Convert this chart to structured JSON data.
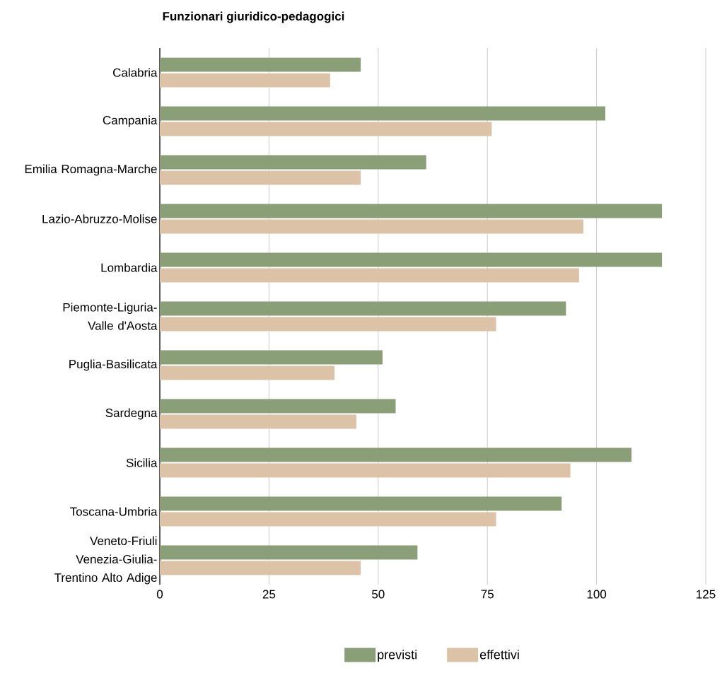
{
  "chart_data": {
    "type": "bar",
    "orientation": "horizontal",
    "title": "Funzionari giuridico-pedagogici",
    "categories": [
      "Calabria",
      "Campania",
      "Emilia Romagna-Marche",
      "Lazio-Abruzzo-Molise",
      "Lombardia",
      "Piemonte-Liguria-Valle d'Aosta",
      "Puglia-Basilicata",
      "Sardegna",
      "Sicilia",
      "Toscana-Umbria",
      "Veneto-Friuli Venezia-Giulia-Trentino Alto Adige"
    ],
    "series": [
      {
        "name": "previsti",
        "color": "#8a9e78",
        "values": [
          46,
          102,
          61,
          115,
          115,
          93,
          51,
          54,
          108,
          92,
          59
        ]
      },
      {
        "name": "effettivi",
        "color": "#dcc3a8",
        "values": [
          39,
          76,
          46,
          97,
          96,
          77,
          40,
          45,
          94,
          77,
          46
        ]
      }
    ],
    "xlim": [
      0,
      125
    ],
    "xticks": [
      0,
      25,
      50,
      75,
      100,
      125
    ],
    "grid": "x",
    "legend": "bottom"
  }
}
